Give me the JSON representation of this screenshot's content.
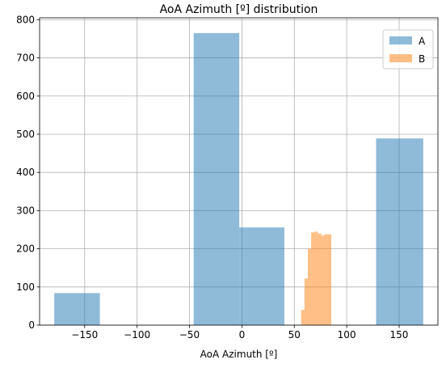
{
  "chart_data": {
    "type": "bar",
    "title": "AoA Azimuth [º] distribution",
    "xlabel": "AoA Azimuth [º]",
    "ylabel": "",
    "xlim": [
      -193,
      187
    ],
    "ylim": [
      0,
      805
    ],
    "xticks": [
      -150,
      -100,
      -50,
      0,
      50,
      100,
      150
    ],
    "yticks": [
      0,
      100,
      200,
      300,
      400,
      500,
      600,
      700,
      800
    ],
    "grid": true,
    "legend_position": "top-right",
    "series": [
      {
        "name": "A",
        "color": "#1f77b4",
        "opacity": 0.5,
        "bins": [
          {
            "x0": -179,
            "x1": -135.5,
            "value": 84
          },
          {
            "x0": -46,
            "x1": -2.5,
            "value": 765
          },
          {
            "x0": -2.5,
            "x1": 40.5,
            "value": 256
          },
          {
            "x0": 128,
            "x1": 173,
            "value": 489
          }
        ]
      },
      {
        "name": "B",
        "color": "#ff7f0e",
        "opacity": 0.5,
        "bins": [
          {
            "x0": 56.5,
            "x1": 59.7,
            "value": 40
          },
          {
            "x0": 59.7,
            "x1": 62.9,
            "value": 122
          },
          {
            "x0": 62.9,
            "x1": 66.1,
            "value": 200
          },
          {
            "x0": 66.1,
            "x1": 69.3,
            "value": 243
          },
          {
            "x0": 69.3,
            "x1": 72.5,
            "value": 245
          },
          {
            "x0": 72.5,
            "x1": 75.7,
            "value": 240
          },
          {
            "x0": 75.7,
            "x1": 78.9,
            "value": 235
          },
          {
            "x0": 78.9,
            "x1": 82.1,
            "value": 238
          },
          {
            "x0": 82.1,
            "x1": 85.3,
            "value": 238
          }
        ]
      }
    ]
  }
}
